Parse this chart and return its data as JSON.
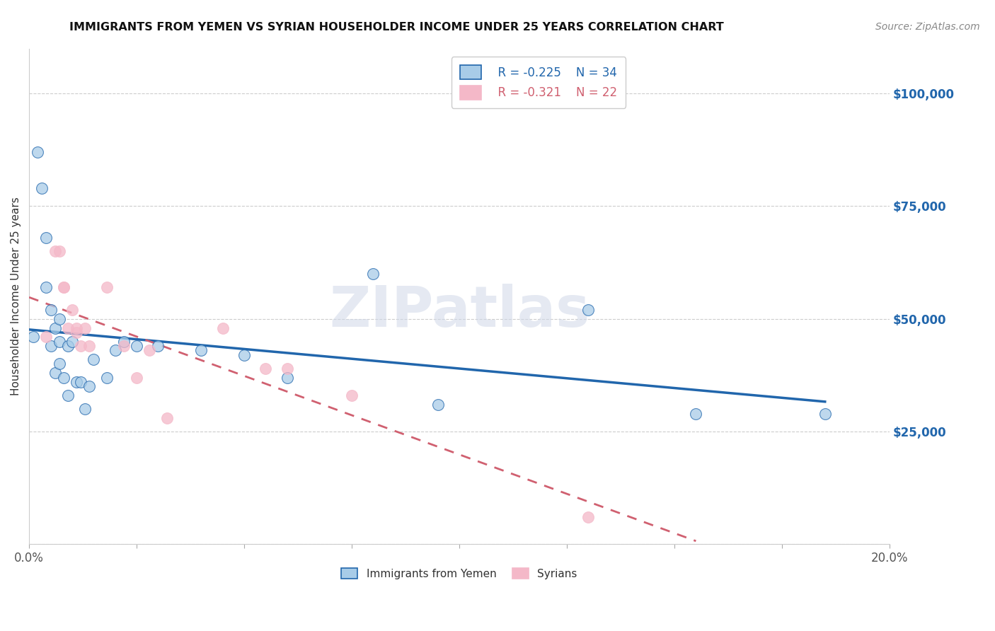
{
  "title": "IMMIGRANTS FROM YEMEN VS SYRIAN HOUSEHOLDER INCOME UNDER 25 YEARS CORRELATION CHART",
  "source": "Source: ZipAtlas.com",
  "xlabel": "",
  "ylabel": "Householder Income Under 25 years",
  "xlim": [
    0.0,
    0.2
  ],
  "ylim": [
    0,
    110000
  ],
  "xticks": [
    0.0,
    0.025,
    0.05,
    0.075,
    0.1,
    0.125,
    0.15,
    0.175,
    0.2
  ],
  "xticklabels": [
    "0.0%",
    "",
    "",
    "",
    "",
    "",
    "",
    "",
    "20.0%"
  ],
  "yticks": [
    0,
    25000,
    50000,
    75000,
    100000
  ],
  "yticklabels": [
    "",
    "$25,000",
    "$50,000",
    "$75,000",
    "$100,000"
  ],
  "legend_labels": [
    "Immigrants from Yemen",
    "Syrians"
  ],
  "legend_R": [
    "R = -0.225",
    "R = -0.321"
  ],
  "legend_N": [
    "N = 34",
    "N = 22"
  ],
  "color_yemen": "#a8cce8",
  "color_syrian": "#f4b8c8",
  "color_trend_yemen": "#2166ac",
  "color_trend_syrian": "#d06070",
  "watermark": "ZIPatlas",
  "yemen_x": [
    0.001,
    0.002,
    0.003,
    0.004,
    0.004,
    0.005,
    0.005,
    0.006,
    0.006,
    0.007,
    0.007,
    0.007,
    0.008,
    0.009,
    0.009,
    0.01,
    0.011,
    0.012,
    0.013,
    0.014,
    0.015,
    0.018,
    0.02,
    0.022,
    0.025,
    0.03,
    0.04,
    0.05,
    0.06,
    0.08,
    0.095,
    0.13,
    0.155,
    0.185
  ],
  "yemen_y": [
    46000,
    87000,
    79000,
    57000,
    68000,
    44000,
    52000,
    48000,
    38000,
    50000,
    45000,
    40000,
    37000,
    44000,
    33000,
    45000,
    36000,
    36000,
    30000,
    35000,
    41000,
    37000,
    43000,
    45000,
    44000,
    44000,
    43000,
    42000,
    37000,
    60000,
    31000,
    52000,
    29000,
    29000
  ],
  "syrian_x": [
    0.004,
    0.006,
    0.007,
    0.008,
    0.008,
    0.009,
    0.01,
    0.011,
    0.011,
    0.012,
    0.013,
    0.014,
    0.018,
    0.022,
    0.025,
    0.028,
    0.032,
    0.045,
    0.055,
    0.06,
    0.075,
    0.13
  ],
  "syrian_y": [
    46000,
    65000,
    65000,
    57000,
    57000,
    48000,
    52000,
    48000,
    47000,
    44000,
    48000,
    44000,
    57000,
    44000,
    37000,
    43000,
    28000,
    48000,
    39000,
    39000,
    33000,
    6000
  ],
  "trend_yemen_x0": 0.0,
  "trend_yemen_x1": 0.185,
  "trend_syrian_x0": 0.0,
  "trend_syrian_x1": 0.155
}
